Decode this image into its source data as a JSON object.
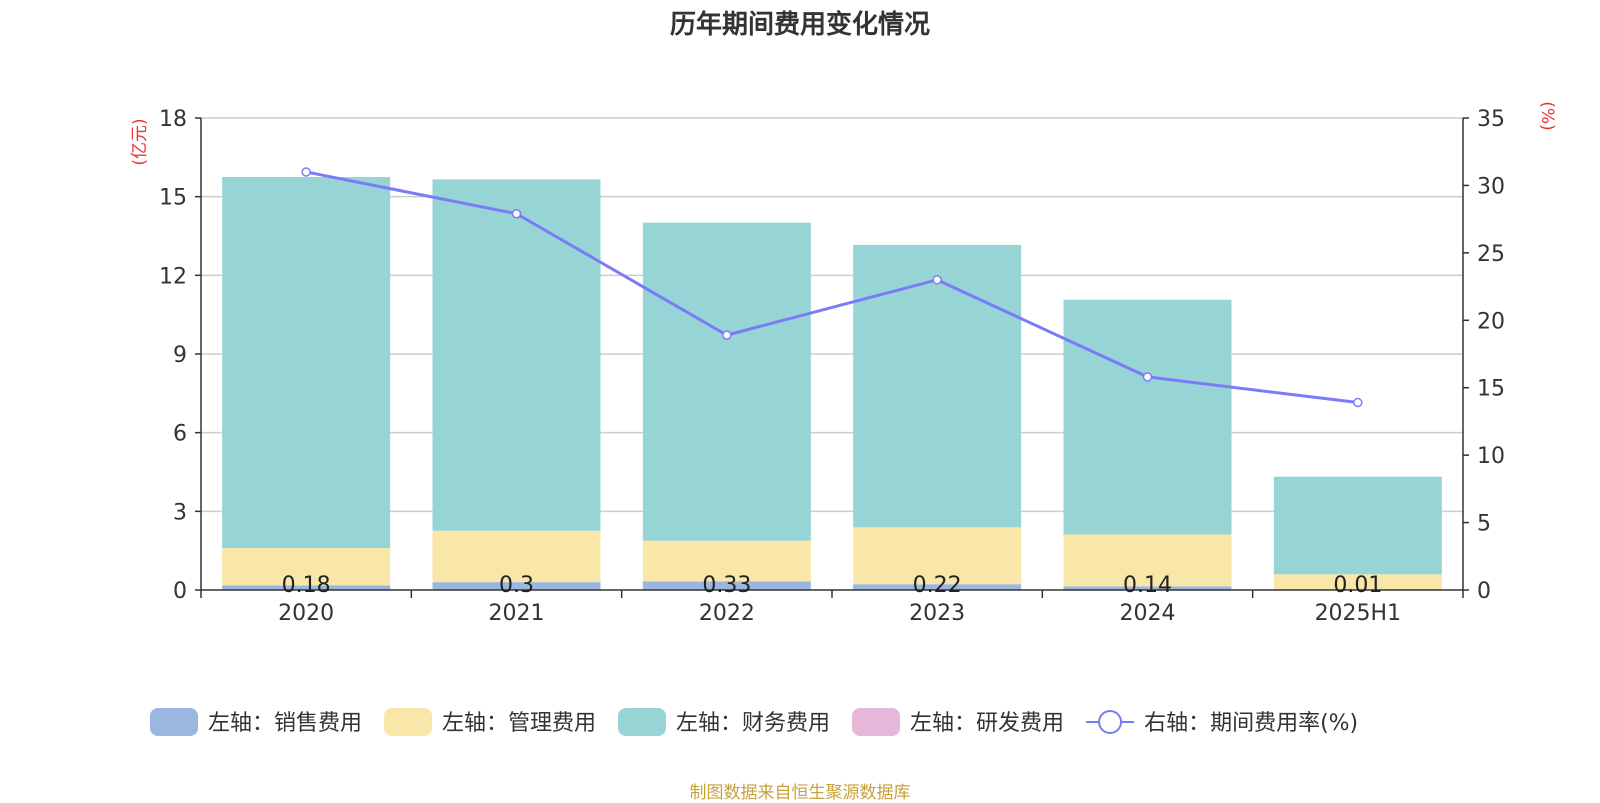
{
  "title": "历年期间费用变化情况",
  "source_note": "制图数据来自恒生聚源数据库",
  "chart_data": {
    "type": "bar",
    "stacked": true,
    "title": "历年期间费用变化情况",
    "categories": [
      "2020",
      "2021",
      "2022",
      "2023",
      "2024",
      "2025H1"
    ],
    "left_axis": {
      "unit_label": "(亿元)",
      "ylim": [
        0,
        18
      ],
      "ticks": [
        "0",
        "3",
        "6",
        "9",
        "12",
        "15",
        "18"
      ]
    },
    "right_axis": {
      "unit_label": "(%)",
      "ylim": [
        0,
        35
      ],
      "ticks": [
        "0",
        "5",
        "10",
        "15",
        "20",
        "25",
        "30",
        "35"
      ]
    },
    "grid": true,
    "legend_position": "bottom",
    "series": [
      {
        "name": "左轴：销售费用",
        "axis": "left",
        "type": "bar",
        "color": "#9bb7e0",
        "values": [
          0.18,
          0.3,
          0.33,
          0.22,
          0.14,
          0.01
        ],
        "data_labels": [
          "0.18",
          "0.3",
          "0.33",
          "0.22",
          "0.14",
          "0.01"
        ]
      },
      {
        "name": "左轴：管理费用",
        "axis": "left",
        "type": "bar",
        "color": "#f8e7a8",
        "values": [
          1.42,
          1.96,
          1.55,
          2.17,
          1.98,
          0.59
        ]
      },
      {
        "name": "左轴：财务费用",
        "axis": "left",
        "type": "bar",
        "color": "#97d4d5",
        "values": [
          14.15,
          13.4,
          12.13,
          10.77,
          8.95,
          3.72
        ]
      },
      {
        "name": "左轴：研发费用",
        "axis": "left",
        "type": "bar",
        "color": "#e6b7d8",
        "values": [
          0,
          0,
          0,
          0,
          0,
          0
        ]
      },
      {
        "name": "右轴：期间费用率(%)",
        "axis": "right",
        "type": "line",
        "color": "#7b7bf7",
        "values": [
          31.0,
          27.9,
          18.9,
          23.0,
          15.8,
          13.9
        ]
      }
    ]
  }
}
